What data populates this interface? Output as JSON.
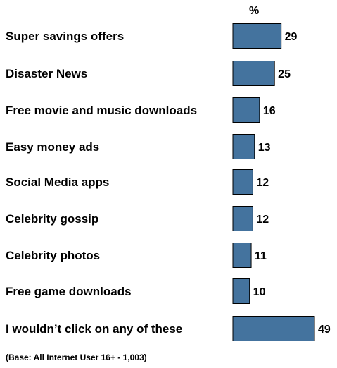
{
  "chart_data": {
    "type": "bar",
    "orientation": "horizontal",
    "unit_label": "%",
    "categories": [
      "Super savings offers",
      "Disaster News",
      "Free movie and music downloads",
      "Easy money ads",
      "Social Media apps",
      "Celebrity gossip",
      "Celebrity photos",
      "Free game downloads",
      "I wouldn’t click on any of these"
    ],
    "values": [
      29,
      25,
      16,
      13,
      12,
      12,
      11,
      10,
      49
    ],
    "data_labels": true,
    "grid": false,
    "bar_color": "#44739E",
    "bar_border_color": "#000000"
  },
  "footnote": "(Base: All Internet User 16+ - 1,003)"
}
